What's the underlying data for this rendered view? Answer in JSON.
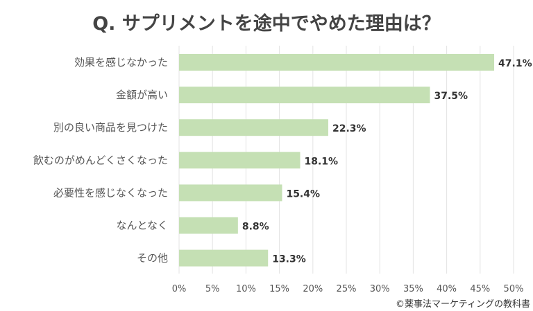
{
  "chart_data": {
    "type": "bar",
    "orientation": "horizontal",
    "title": "Q. サプリメントを途中でやめた理由は？",
    "categories": [
      "効果を感じなかった",
      "金額が高い",
      "別の良い商品を見つけた",
      "飲むのがめんどくさくなった",
      "必要性を感じなくなった",
      "なんとなく",
      "その他"
    ],
    "values": [
      47.1,
      37.5,
      22.3,
      18.1,
      15.4,
      8.8,
      13.3
    ],
    "data_labels": [
      "47.1%",
      "37.5%",
      "22.3%",
      "18.1%",
      "15.4%",
      "8.8%",
      "13.3%"
    ],
    "xlim": [
      0,
      50
    ],
    "x_ticks": [
      "0%",
      "5%",
      "10%",
      "15%",
      "20%",
      "25%",
      "30%",
      "35%",
      "40%",
      "45%",
      "50%"
    ],
    "grid": "vertical",
    "bar_color": "#c5e0b4"
  },
  "credit": "©薬事法マーケティングの教科書"
}
